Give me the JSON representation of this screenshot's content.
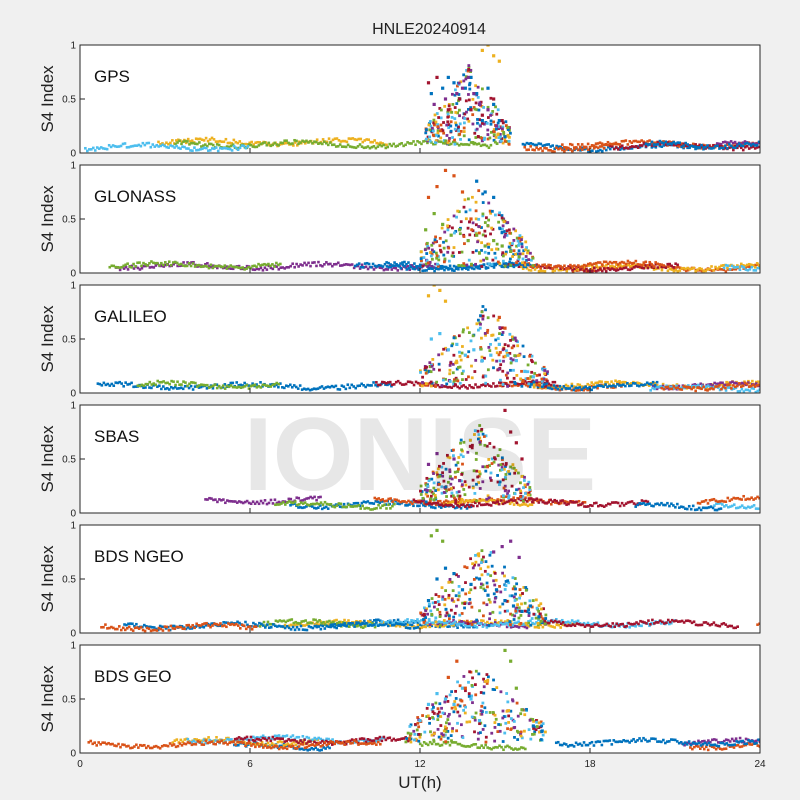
{
  "title": "HNLE20240914",
  "watermark": "IONISE",
  "colors": [
    "#0072BD",
    "#D95319",
    "#EDB120",
    "#7E2F8E",
    "#77AC30",
    "#4DBEEE",
    "#A2142F"
  ],
  "chart_data": {
    "type": "scatter",
    "xlabel": "UT(h)",
    "xlim": [
      0,
      24
    ],
    "xticks": [
      "0",
      "6",
      "12",
      "18",
      "24"
    ],
    "ylabel": "S4 Index",
    "ylim": [
      0,
      1
    ],
    "yticks": [
      "0",
      "0.5",
      "1"
    ],
    "grid": false,
    "panels": [
      {
        "name": "GPS",
        "quiet_level": 0.08,
        "disturbed_hours": [
          12.2,
          15.2
        ],
        "disturbed_peak": 1.0,
        "series": [
          {
            "x": [
              12.4,
              12.8,
              13.0,
              13.2,
              13.4,
              13.6,
              13.8,
              14.0,
              14.2,
              14.4,
              14.6,
              14.8,
              15.0
            ],
            "y": [
              0.55,
              0.6,
              0.7,
              0.65,
              0.5,
              0.6,
              0.7,
              0.55,
              0.3,
              0.6,
              0.45,
              0.3,
              0.15
            ]
          },
          {
            "x": [
              12.5,
              12.9,
              13.3,
              13.5,
              13.7,
              13.9,
              14.1,
              14.4,
              14.7
            ],
            "y": [
              0.45,
              0.5,
              0.55,
              0.6,
              0.7,
              0.55,
              0.45,
              0.4,
              0.25
            ]
          },
          {
            "x": [
              12.3,
              12.6,
              13.0,
              13.4,
              13.8,
              14.2,
              14.6,
              14.9
            ],
            "y": [
              0.65,
              0.7,
              0.4,
              0.5,
              0.4,
              0.35,
              0.5,
              0.3
            ]
          },
          {
            "x": [
              14.2,
              14.4,
              14.6,
              14.8
            ],
            "y": [
              0.95,
              1.0,
              0.9,
              0.85
            ]
          }
        ]
      },
      {
        "name": "GLONASS",
        "quiet_level": 0.06,
        "disturbed_hours": [
          12.0,
          16.0
        ],
        "disturbed_peak": 1.0,
        "series": [
          {
            "x": [
              12.3,
              12.6,
              12.9,
              13.2,
              13.5,
              13.8
            ],
            "y": [
              0.7,
              0.8,
              0.95,
              0.9,
              0.75,
              0.5
            ]
          },
          {
            "x": [
              12.2,
              12.5,
              12.8,
              13.1,
              13.4,
              13.7,
              14.0,
              14.3,
              14.6,
              14.9,
              15.2,
              15.5
            ],
            "y": [
              0.4,
              0.55,
              0.45,
              0.35,
              0.4,
              0.3,
              0.35,
              0.25,
              0.3,
              0.25,
              0.2,
              0.15
            ]
          },
          {
            "x": [
              14.0,
              14.3,
              14.6
            ],
            "y": [
              0.85,
              0.75,
              0.7
            ]
          }
        ]
      },
      {
        "name": "GALILEO",
        "quiet_level": 0.06,
        "disturbed_hours": [
          12.0,
          16.5
        ],
        "disturbed_peak": 1.0,
        "series": [
          {
            "x": [
              12.3,
              12.5,
              12.7,
              12.9
            ],
            "y": [
              0.9,
              1.0,
              0.95,
              0.85
            ]
          },
          {
            "x": [
              12.4,
              12.7,
              13.0,
              13.3,
              13.6,
              13.9,
              14.2,
              14.5,
              14.8,
              15.1,
              15.4,
              15.7,
              16.0
            ],
            "y": [
              0.5,
              0.55,
              0.4,
              0.45,
              0.35,
              0.4,
              0.3,
              0.35,
              0.45,
              0.35,
              0.3,
              0.2,
              0.15
            ]
          },
          {
            "x": [
              14.8,
              15.0
            ],
            "y": [
              0.7,
              0.6
            ]
          }
        ]
      },
      {
        "name": "SBAS",
        "quiet_level": 0.1,
        "disturbed_hours": [
          12.0,
          16.0
        ],
        "disturbed_peak": 1.0,
        "series": [
          {
            "x": [
              12.3,
              12.6,
              13.2,
              13.4
            ],
            "y": [
              0.45,
              0.55,
              0.5,
              0.3
            ]
          },
          {
            "x": [
              15.0,
              15.2,
              15.4,
              15.6
            ],
            "y": [
              0.95,
              0.75,
              0.65,
              0.5
            ]
          }
        ]
      },
      {
        "name": "BDS NGEO",
        "quiet_level": 0.07,
        "disturbed_hours": [
          12.0,
          16.5
        ],
        "disturbed_peak": 1.0,
        "series": [
          {
            "x": [
              12.4,
              12.6,
              12.8
            ],
            "y": [
              0.9,
              0.95,
              0.85
            ]
          },
          {
            "x": [
              12.3,
              12.6,
              12.9,
              13.2,
              13.5,
              13.8,
              14.1,
              14.4,
              14.7,
              15.0,
              15.3,
              15.6,
              15.9,
              16.2
            ],
            "y": [
              0.3,
              0.5,
              0.6,
              0.55,
              0.4,
              0.45,
              0.5,
              0.35,
              0.4,
              0.3,
              0.25,
              0.2,
              0.25,
              0.15
            ]
          },
          {
            "x": [
              14.6,
              14.9,
              15.2,
              15.5
            ],
            "y": [
              0.75,
              0.8,
              0.85,
              0.7
            ]
          }
        ]
      },
      {
        "name": "BDS GEO",
        "quiet_level": 0.1,
        "disturbed_hours": [
          11.5,
          16.5
        ],
        "disturbed_peak": 0.95,
        "series": [
          {
            "x": [
              12.0,
              12.3,
              12.6,
              12.9,
              13.2,
              13.5,
              13.8,
              14.1
            ],
            "y": [
              0.3,
              0.45,
              0.55,
              0.5,
              0.45,
              0.6,
              0.5,
              0.3
            ]
          },
          {
            "x": [
              13.0,
              13.3,
              13.6
            ],
            "y": [
              0.7,
              0.85,
              0.6
            ]
          },
          {
            "x": [
              15.0,
              15.2,
              15.4,
              15.6
            ],
            "y": [
              0.95,
              0.85,
              0.6,
              0.4
            ]
          },
          {
            "x": [
              16.0,
              16.3
            ],
            "y": [
              0.25,
              0.2
            ]
          }
        ]
      }
    ]
  }
}
